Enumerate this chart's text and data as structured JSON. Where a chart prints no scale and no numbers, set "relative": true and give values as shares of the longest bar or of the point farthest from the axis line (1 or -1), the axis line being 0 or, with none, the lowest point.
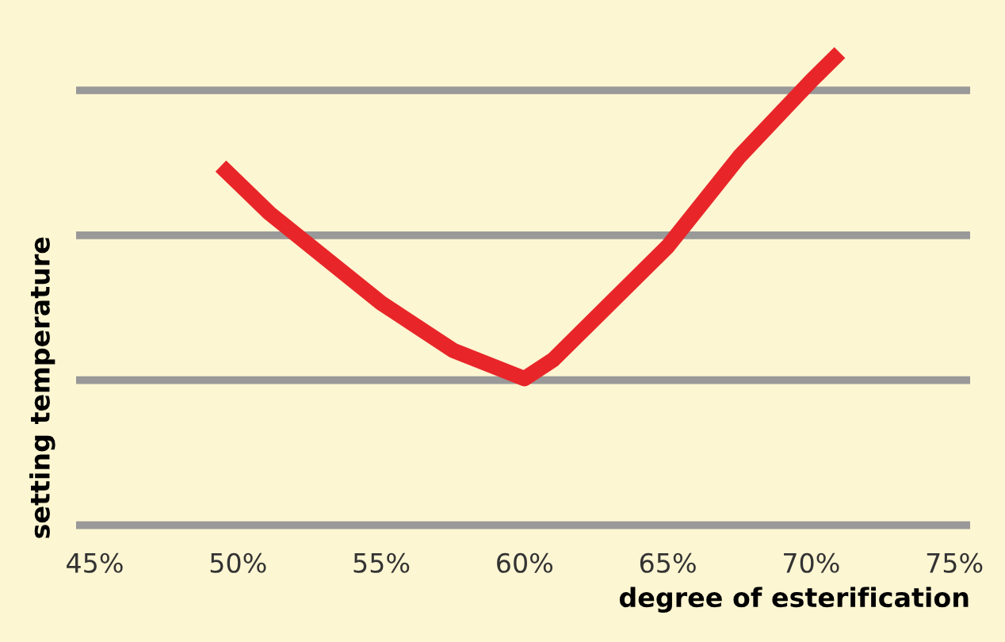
{
  "chart_data": {
    "type": "line",
    "relative": true,
    "xlabel": "degree of esterification",
    "ylabel": "setting temperature",
    "x": [
      49.4,
      51.1,
      55,
      57.5,
      60,
      61,
      65,
      67.5,
      70,
      71
    ],
    "series": [
      {
        "color": "#e8262a",
        "values": [
          0.76,
          0.66,
          0.47,
          0.37,
          0.31,
          0.35,
          0.59,
          0.78,
          0.94,
          1.0
        ]
      }
    ],
    "xlim": [
      44.35,
      75.55
    ],
    "xticks": [
      {
        "value": 45,
        "label": "45%"
      },
      {
        "value": 50,
        "label": "50%"
      },
      {
        "value": 55,
        "label": "55%"
      },
      {
        "value": 60,
        "label": "60%"
      },
      {
        "value": 65,
        "label": "65%"
      },
      {
        "value": 70,
        "label": "70%"
      },
      {
        "value": 75,
        "label": "75%"
      }
    ],
    "grid": "y",
    "marker": "none",
    "line_style": "solid"
  }
}
